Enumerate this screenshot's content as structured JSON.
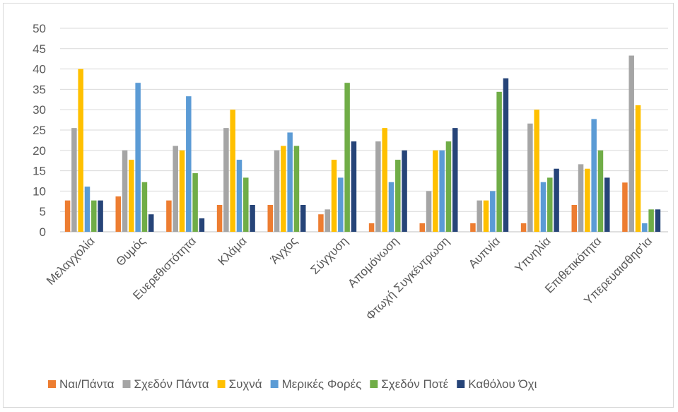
{
  "chart_data": {
    "type": "bar",
    "title": "",
    "xlabel": "",
    "ylabel": "",
    "ylim": [
      0,
      50
    ],
    "yticks": [
      0,
      5,
      10,
      15,
      20,
      25,
      30,
      35,
      40,
      45,
      50
    ],
    "grid": true,
    "legend_position": "bottom",
    "categories": [
      "Μελαγχολία",
      "Θυμός",
      "Ευερεθιστότητα",
      "Κλάμα",
      "Άγχος",
      "Σύγχυση",
      "Απομόνωση",
      "Φτωχή Συγκέντρωση",
      "Αυπνία",
      "Υπνηλία",
      "Επιθετικότητα",
      "Υπερευαισθησ'ια"
    ],
    "series": [
      {
        "name": "Ναι/Πάντα",
        "color": "#ed7d31",
        "values": [
          7.7,
          8.7,
          7.7,
          6.6,
          6.6,
          4.3,
          2.1,
          2.1,
          2.1,
          2.1,
          6.6,
          12.1
        ]
      },
      {
        "name": "Σχεδόν Πάντα",
        "color": "#a5a5a5",
        "values": [
          25.5,
          20.0,
          21.1,
          25.5,
          20.0,
          5.5,
          22.2,
          10.0,
          7.7,
          26.6,
          16.6,
          43.3
        ]
      },
      {
        "name": "Συχνά",
        "color": "#ffc000",
        "values": [
          40.0,
          17.7,
          20.0,
          30.0,
          21.1,
          17.7,
          25.5,
          20.0,
          7.7,
          30.0,
          15.5,
          31.1
        ]
      },
      {
        "name": "Μερικές Φορές",
        "color": "#5b9bd5",
        "values": [
          11.1,
          36.6,
          33.3,
          17.7,
          24.4,
          13.3,
          12.2,
          20.0,
          10.0,
          12.2,
          27.7,
          2.1
        ]
      },
      {
        "name": "Σχεδόν Ποτέ",
        "color": "#70ad47",
        "values": [
          7.7,
          12.2,
          14.4,
          13.3,
          21.1,
          36.6,
          17.7,
          22.2,
          34.4,
          13.3,
          20.0,
          5.5
        ]
      },
      {
        "name": "Καθόλου Όχι",
        "color": "#264478",
        "values": [
          7.7,
          4.3,
          3.3,
          6.6,
          6.6,
          22.2,
          20.0,
          25.5,
          37.7,
          15.5,
          13.3,
          5.5
        ]
      }
    ]
  }
}
